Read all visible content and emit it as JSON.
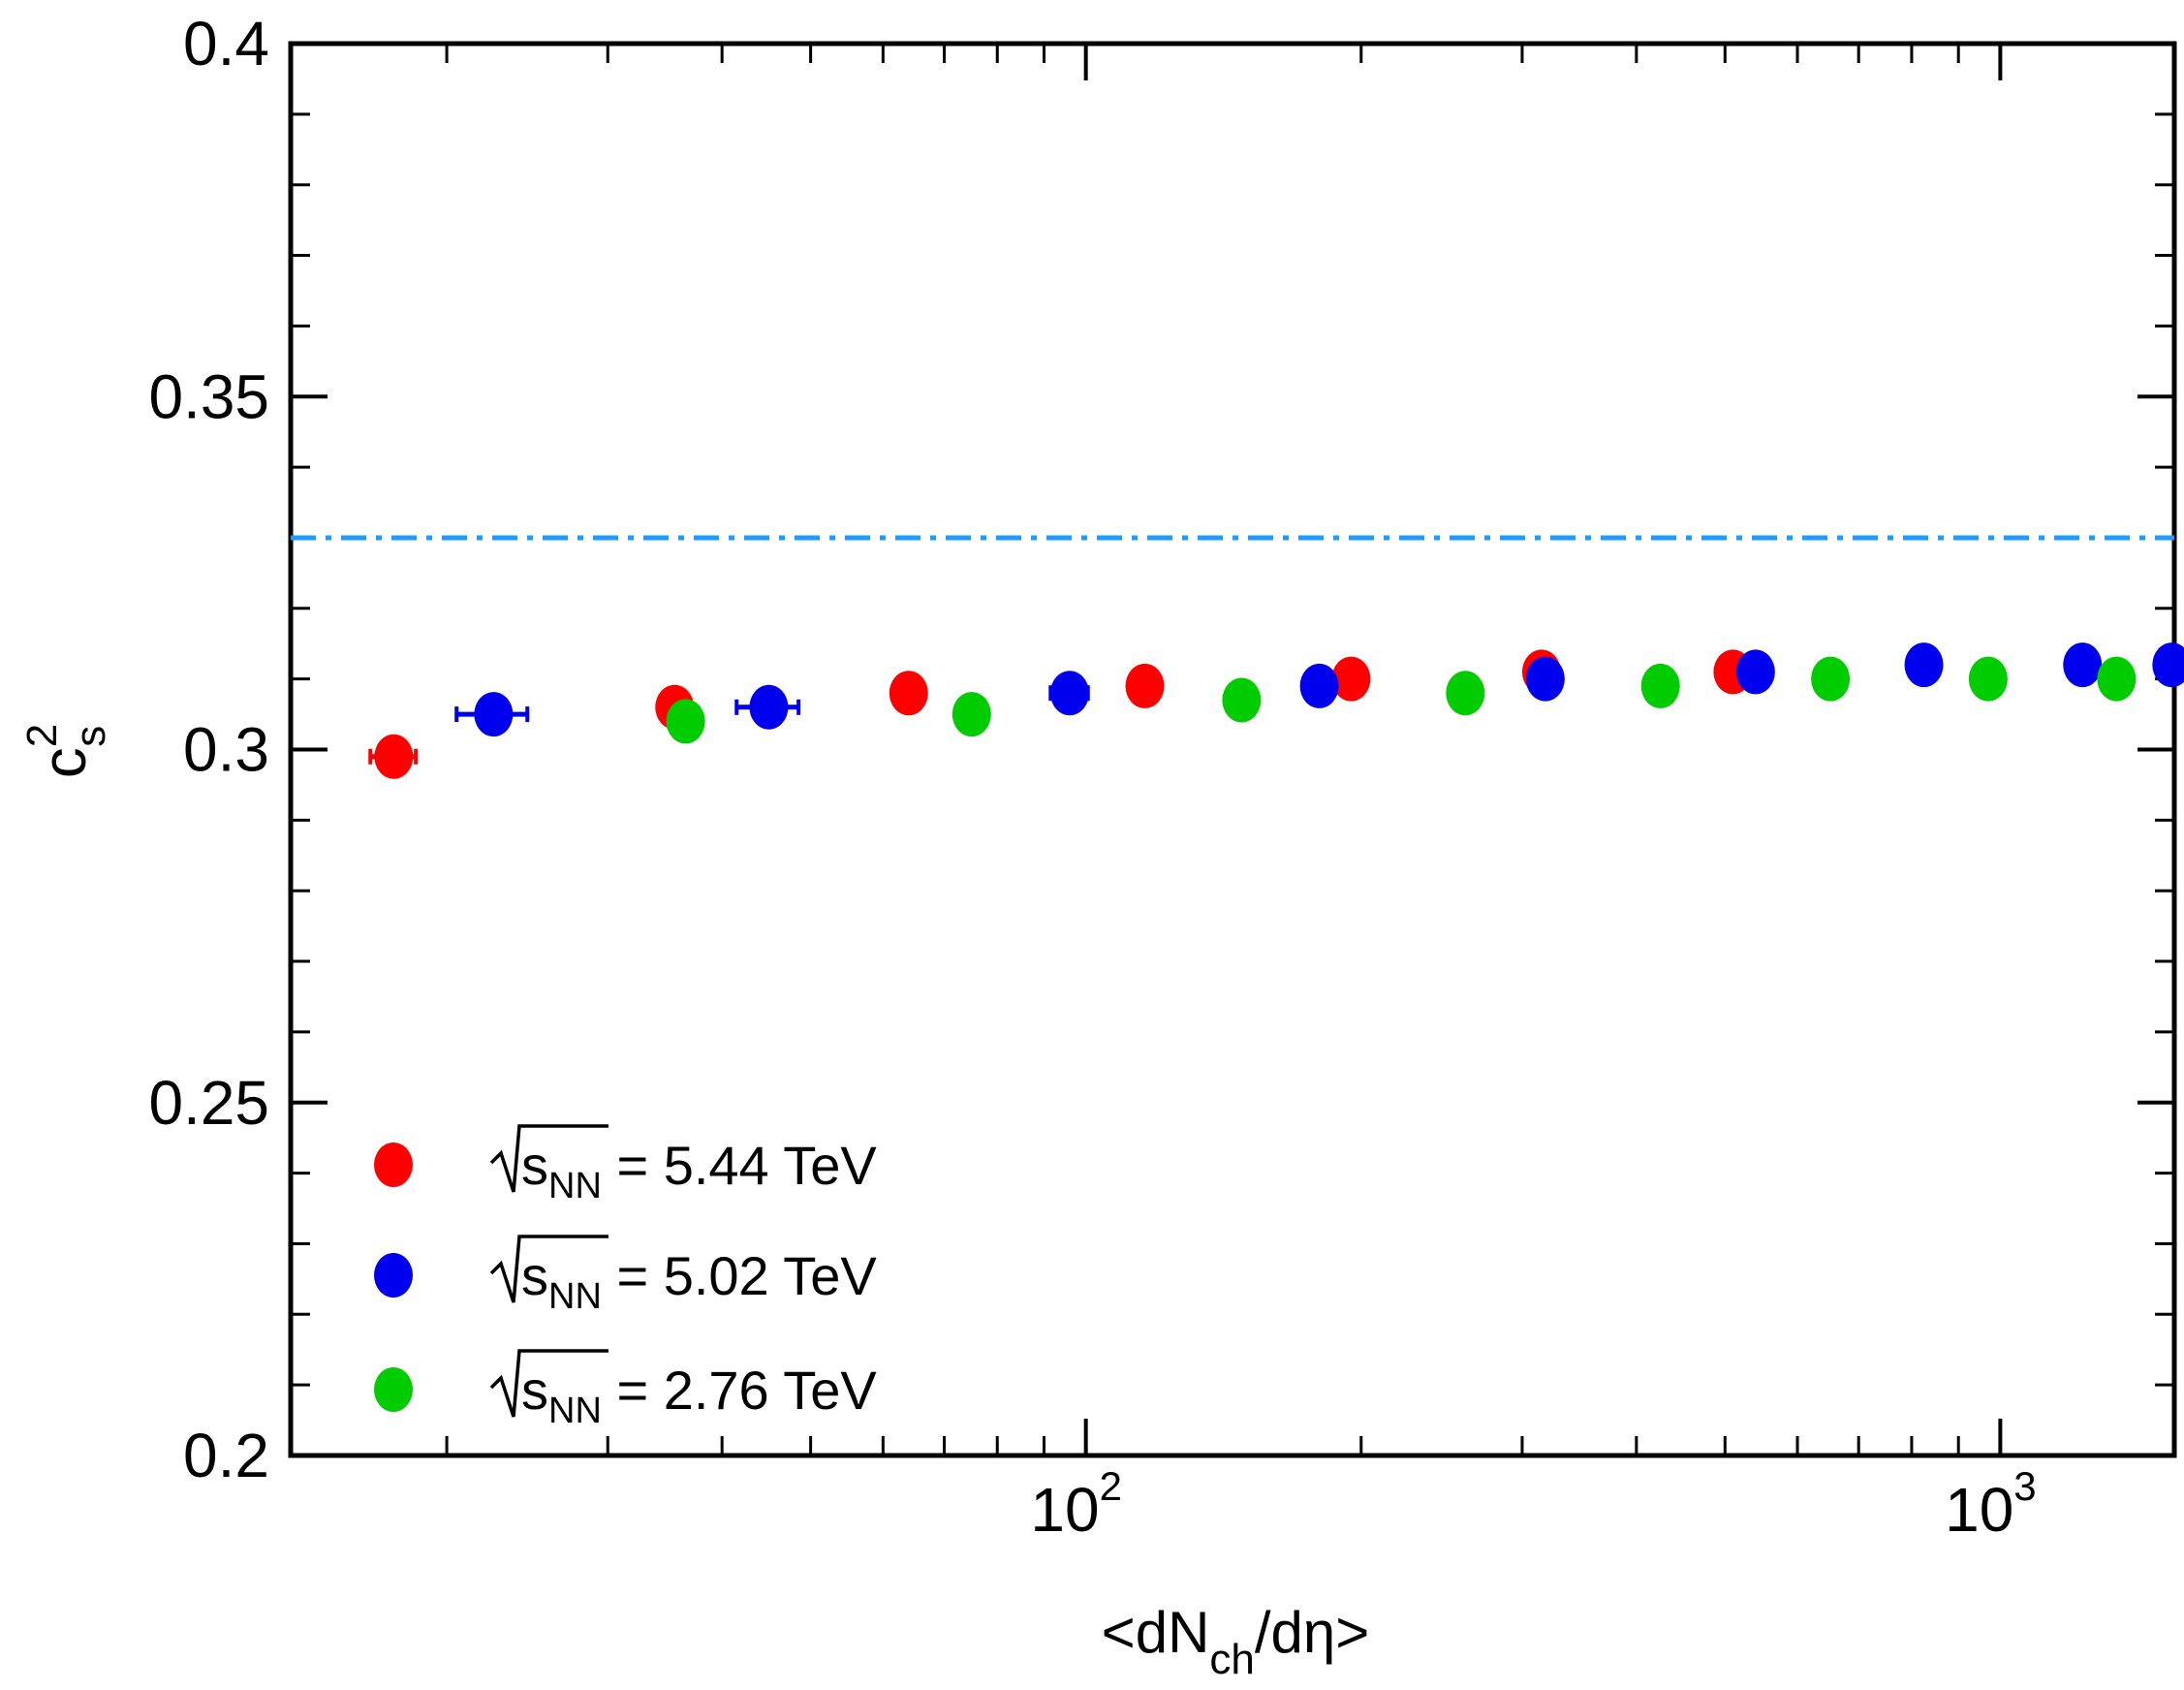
{
  "chart_data": {
    "type": "scatter",
    "x_scale": "log",
    "xlim": [
      13.5,
      1550
    ],
    "ylim": [
      0.2,
      0.4
    ],
    "yticks": [
      0.2,
      0.25,
      0.3,
      0.35,
      0.4
    ],
    "ytick_labels": [
      "0.2",
      "0.25",
      "0.3",
      "0.35",
      "0.4"
    ],
    "xtick_labels": [
      {
        "base": "10",
        "exp": "2",
        "value": 100
      },
      {
        "base": "10",
        "exp": "3",
        "value": 1000
      }
    ],
    "xlabel": {
      "pre": "<dN",
      "sub": "ch",
      "post": "/dη>"
    },
    "ylabel": {
      "base": "c",
      "sup": "2",
      "sub": "s"
    },
    "reference_line": {
      "y": 0.33,
      "color": "#1e9bff",
      "style": "dash-dot"
    },
    "series": [
      {
        "name": "5.44 TeV",
        "legend": {
          "sub": "NN",
          "rest": " = 5.44 TeV"
        },
        "color": "#ff0000",
        "x": [
          17.5,
          35.5,
          64,
          116,
          195,
          315,
          510
        ],
        "y": [
          0.299,
          0.306,
          0.308,
          0.309,
          0.31,
          0.311,
          0.311
        ],
        "xerr": [
          1.0,
          0,
          0,
          0,
          0,
          0,
          0
        ]
      },
      {
        "name": "5.02 TeV",
        "legend": {
          "sub": "NN",
          "rest": " = 5.02 TeV"
        },
        "color": "#0000ee",
        "x": [
          22.5,
          45,
          96,
          180,
          318,
          540,
          825,
          1230,
          1540
        ],
        "y": [
          0.305,
          0.306,
          0.308,
          0.309,
          0.31,
          0.311,
          0.312,
          0.312,
          0.312
        ],
        "xerr": [
          2.0,
          3.5,
          4.5,
          0,
          0,
          0,
          0,
          0,
          0
        ]
      },
      {
        "name": "2.76 TeV",
        "legend": {
          "sub": "NN",
          "rest": " = 2.76 TeV"
        },
        "color": "#00cc00",
        "x": [
          36.5,
          75,
          148,
          260,
          425,
          652,
          970,
          1340
        ],
        "y": [
          0.304,
          0.305,
          0.307,
          0.308,
          0.309,
          0.31,
          0.31,
          0.31
        ],
        "xerr": [
          1.5,
          0,
          0,
          0,
          0,
          0,
          0,
          0
        ]
      }
    ]
  }
}
